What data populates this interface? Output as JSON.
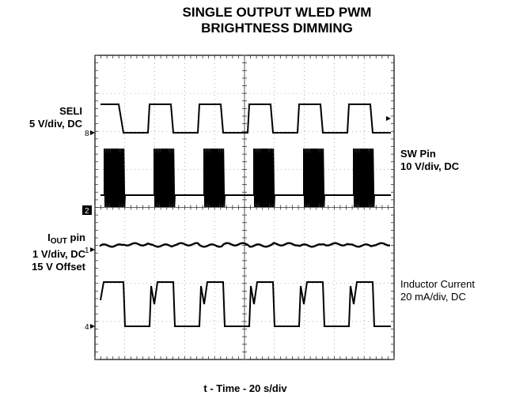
{
  "title_line1": "SINGLE OUTPUT WLED PWM",
  "title_line2": "BRIGHTNESS DIMMING",
  "xlabel": "t - Time - 20   s/div",
  "labels": {
    "seli_name": "SELI",
    "seli_scale": "5 V/div, DC",
    "sw_name": "SW Pin",
    "sw_scale": "10 V/div, DC",
    "iout_main": "I",
    "iout_sub": "OUT",
    "iout_suffix": " pin",
    "iout_scale": "1 V/div, DC",
    "iout_offset": "15 V Offset",
    "ind_name": "Inductor Current",
    "ind_scale": "20 mA/div, DC"
  },
  "markers": {
    "ch_seli": "8",
    "ch_sw": "2",
    "ch_iout": "1",
    "ch_ind": "4"
  },
  "chart_data": {
    "type": "line",
    "grid": true,
    "x_divisions": 10,
    "y_divisions": 8,
    "x_unit": "20 s/div",
    "series": [
      {
        "name": "SELI",
        "pwm_periods": 6,
        "duty": 0.5
      },
      {
        "name": "SW Pin",
        "pwm_periods": 6,
        "duty": 0.5,
        "switching_bursts": true
      },
      {
        "name": "IOUT pin",
        "pwm_periods": 6,
        "ripple": true
      },
      {
        "name": "Inductor Current",
        "pwm_periods": 6,
        "duty": 0.5
      }
    ]
  }
}
